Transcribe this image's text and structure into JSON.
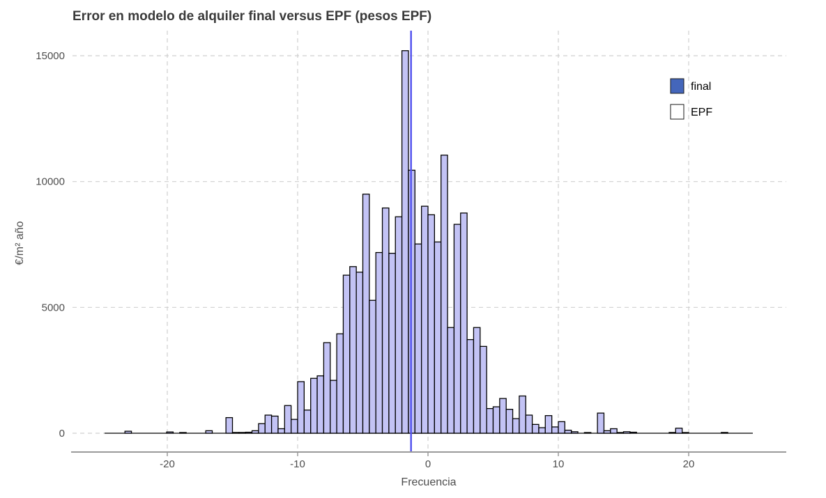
{
  "chart_data": {
    "type": "bar",
    "title": "Error en modelo de alquiler final versus EPF (pesos EPF)",
    "xlabel": "Frecuencia",
    "ylabel": "€/m² año",
    "xlim": [
      -25,
      25
    ],
    "ylim": [
      0,
      15500
    ],
    "xticks": [
      -20,
      -10,
      0,
      10,
      20
    ],
    "xtick_labels": [
      "-20",
      "-10",
      "0",
      "10",
      "20"
    ],
    "yticks": [
      0,
      5000,
      10000,
      15000
    ],
    "ytick_labels": [
      "0",
      "5000",
      "10000",
      "15000"
    ],
    "grid": true,
    "legend_position": "top-right",
    "legend": [
      {
        "label": "final",
        "color": "#4466bb"
      },
      {
        "label": "EPF",
        "color": "#ffffff"
      }
    ],
    "bar_fill": "#c3c3f5",
    "bar_edge": "#000000",
    "vline": {
      "x": -1.3,
      "color": "#5555ee"
    },
    "bin_width": 0.5,
    "bins": [
      {
        "x": -23.0,
        "y": 80
      },
      {
        "x": -19.8,
        "y": 50
      },
      {
        "x": -18.8,
        "y": 20
      },
      {
        "x": -16.8,
        "y": 100
      },
      {
        "x": -15.25,
        "y": 620
      },
      {
        "x": -14.75,
        "y": 30
      },
      {
        "x": -14.25,
        "y": 30
      },
      {
        "x": -13.75,
        "y": 40
      },
      {
        "x": -13.25,
        "y": 100
      },
      {
        "x": -12.75,
        "y": 380
      },
      {
        "x": -12.25,
        "y": 720
      },
      {
        "x": -11.75,
        "y": 680
      },
      {
        "x": -11.25,
        "y": 180
      },
      {
        "x": -10.75,
        "y": 1100
      },
      {
        "x": -10.25,
        "y": 550
      },
      {
        "x": -9.75,
        "y": 2050
      },
      {
        "x": -9.25,
        "y": 920
      },
      {
        "x": -8.75,
        "y": 2180
      },
      {
        "x": -8.25,
        "y": 2280
      },
      {
        "x": -7.75,
        "y": 3600
      },
      {
        "x": -7.25,
        "y": 2100
      },
      {
        "x": -6.75,
        "y": 3950
      },
      {
        "x": -6.25,
        "y": 6280
      },
      {
        "x": -5.75,
        "y": 6620
      },
      {
        "x": -5.25,
        "y": 6400
      },
      {
        "x": -4.75,
        "y": 9500
      },
      {
        "x": -4.25,
        "y": 5280
      },
      {
        "x": -3.75,
        "y": 7180
      },
      {
        "x": -3.25,
        "y": 8950
      },
      {
        "x": -2.75,
        "y": 7150
      },
      {
        "x": -2.25,
        "y": 8600
      },
      {
        "x": -1.75,
        "y": 15200
      },
      {
        "x": -1.25,
        "y": 10450
      },
      {
        "x": -0.75,
        "y": 7520
      },
      {
        "x": -0.25,
        "y": 9020
      },
      {
        "x": 0.25,
        "y": 8680
      },
      {
        "x": 0.75,
        "y": 7600
      },
      {
        "x": 1.25,
        "y": 11050
      },
      {
        "x": 1.75,
        "y": 4200
      },
      {
        "x": 2.25,
        "y": 8300
      },
      {
        "x": 2.75,
        "y": 8750
      },
      {
        "x": 3.25,
        "y": 3720
      },
      {
        "x": 3.75,
        "y": 4200
      },
      {
        "x": 4.25,
        "y": 3450
      },
      {
        "x": 4.75,
        "y": 980
      },
      {
        "x": 5.25,
        "y": 1050
      },
      {
        "x": 5.75,
        "y": 1380
      },
      {
        "x": 6.25,
        "y": 950
      },
      {
        "x": 6.75,
        "y": 580
      },
      {
        "x": 7.25,
        "y": 1480
      },
      {
        "x": 7.75,
        "y": 720
      },
      {
        "x": 8.25,
        "y": 350
      },
      {
        "x": 8.75,
        "y": 220
      },
      {
        "x": 9.25,
        "y": 700
      },
      {
        "x": 9.75,
        "y": 250
      },
      {
        "x": 10.25,
        "y": 460
      },
      {
        "x": 10.75,
        "y": 120
      },
      {
        "x": 11.25,
        "y": 60
      },
      {
        "x": 12.25,
        "y": 20
      },
      {
        "x": 13.25,
        "y": 800
      },
      {
        "x": 13.75,
        "y": 100
      },
      {
        "x": 14.25,
        "y": 180
      },
      {
        "x": 14.75,
        "y": 20
      },
      {
        "x": 15.25,
        "y": 60
      },
      {
        "x": 15.75,
        "y": 40
      },
      {
        "x": 18.75,
        "y": 30
      },
      {
        "x": 19.25,
        "y": 200
      },
      {
        "x": 19.75,
        "y": 20
      },
      {
        "x": 22.75,
        "y": 30
      }
    ]
  }
}
